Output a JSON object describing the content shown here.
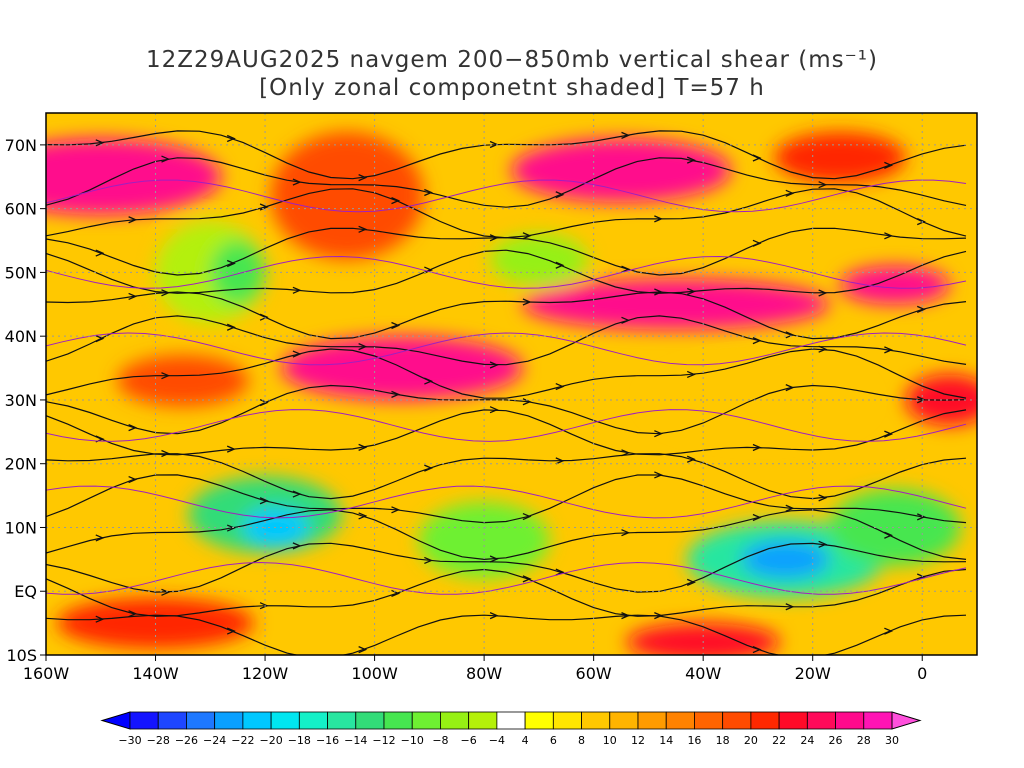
{
  "title": {
    "line1": "12Z29AUG2025 navgem 200−850mb vertical shear (ms⁻¹)",
    "line2": "[Only zonal componetnt shaded] T=57 h"
  },
  "map": {
    "lon_range": [
      -160,
      10
    ],
    "lat_range": [
      -10,
      75
    ],
    "x_ticks": [
      "160W",
      "140W",
      "120W",
      "100W",
      "80W",
      "60W",
      "40W",
      "20W",
      "0"
    ],
    "y_ticks": [
      "10S",
      "EQ",
      "10N",
      "20N",
      "30N",
      "40N",
      "50N",
      "60N",
      "70N"
    ],
    "gridlines": "dotted"
  },
  "colorbar": {
    "labels": [
      "−30",
      "−28",
      "−26",
      "−24",
      "−22",
      "−20",
      "−18",
      "−16",
      "−14",
      "−12",
      "−10",
      "−8",
      "−6",
      "−4",
      "4",
      "6",
      "8",
      "10",
      "12",
      "14",
      "16",
      "18",
      "20",
      "22",
      "24",
      "26",
      "28",
      "30"
    ],
    "colors": [
      "#1414ff",
      "#1e46ff",
      "#1e78ff",
      "#0aa0ff",
      "#00c8ff",
      "#00e6f0",
      "#14f0c8",
      "#28e6a0",
      "#32dc78",
      "#46e650",
      "#6ef032",
      "#96f014",
      "#b4f00a",
      "#ffffff",
      "#ffff00",
      "#ffe600",
      "#ffc800",
      "#ffb400",
      "#ff9b00",
      "#ff8200",
      "#ff6400",
      "#ff4b00",
      "#ff2800",
      "#ff0a28",
      "#ff0a5a",
      "#ff0a8c",
      "#ff14b4"
    ],
    "left_arrow_color": "#0000ff",
    "right_arrow_color": "#ff50dc"
  },
  "shading": {
    "blobs": [
      {
        "lon": -150,
        "lat": 65,
        "rx": 22,
        "ry": 6,
        "color": "#ff0a8c"
      },
      {
        "lon": -105,
        "lat": 62,
        "rx": 14,
        "ry": 10,
        "color": "#ff4b00"
      },
      {
        "lon": -55,
        "lat": 66,
        "rx": 20,
        "ry": 5,
        "color": "#ff0a8c"
      },
      {
        "lon": -15,
        "lat": 68,
        "rx": 12,
        "ry": 4,
        "color": "#ff2800"
      },
      {
        "lon": -130,
        "lat": 50,
        "rx": 10,
        "ry": 8,
        "color": "#b4f00a"
      },
      {
        "lon": -125,
        "lat": 50,
        "rx": 5,
        "ry": 5,
        "color": "#46e650"
      },
      {
        "lon": -70,
        "lat": 52,
        "rx": 9,
        "ry": 4,
        "color": "#96f014"
      },
      {
        "lon": -45,
        "lat": 45,
        "rx": 28,
        "ry": 4,
        "color": "#ff0a8c"
      },
      {
        "lon": -5,
        "lat": 48,
        "rx": 10,
        "ry": 3,
        "color": "#ff0a8c"
      },
      {
        "lon": -95,
        "lat": 35,
        "rx": 22,
        "ry": 5,
        "color": "#ff0a8c"
      },
      {
        "lon": -135,
        "lat": 33,
        "rx": 12,
        "ry": 4,
        "color": "#ff4b00"
      },
      {
        "lon": -30,
        "lat": 30,
        "rx": 20,
        "ry": 6,
        "color": "#ffc800"
      },
      {
        "lon": 5,
        "lat": 30,
        "rx": 8,
        "ry": 4,
        "color": "#ff0a28"
      },
      {
        "lon": -120,
        "lat": 12,
        "rx": 14,
        "ry": 6,
        "color": "#32dc78"
      },
      {
        "lon": -118,
        "lat": 10,
        "rx": 6,
        "ry": 3,
        "color": "#00c8ff"
      },
      {
        "lon": -80,
        "lat": 8,
        "rx": 12,
        "ry": 6,
        "color": "#6ef032"
      },
      {
        "lon": -25,
        "lat": 5,
        "rx": 18,
        "ry": 6,
        "color": "#28e6a0"
      },
      {
        "lon": -25,
        "lat": 5,
        "rx": 8,
        "ry": 3,
        "color": "#0aa0ff"
      },
      {
        "lon": -5,
        "lat": 10,
        "rx": 12,
        "ry": 6,
        "color": "#46e650"
      },
      {
        "lon": -140,
        "lat": -5,
        "rx": 18,
        "ry": 4,
        "color": "#ff2800"
      },
      {
        "lon": -40,
        "lat": -8,
        "rx": 14,
        "ry": 3,
        "color": "#ff0a28"
      }
    ]
  }
}
